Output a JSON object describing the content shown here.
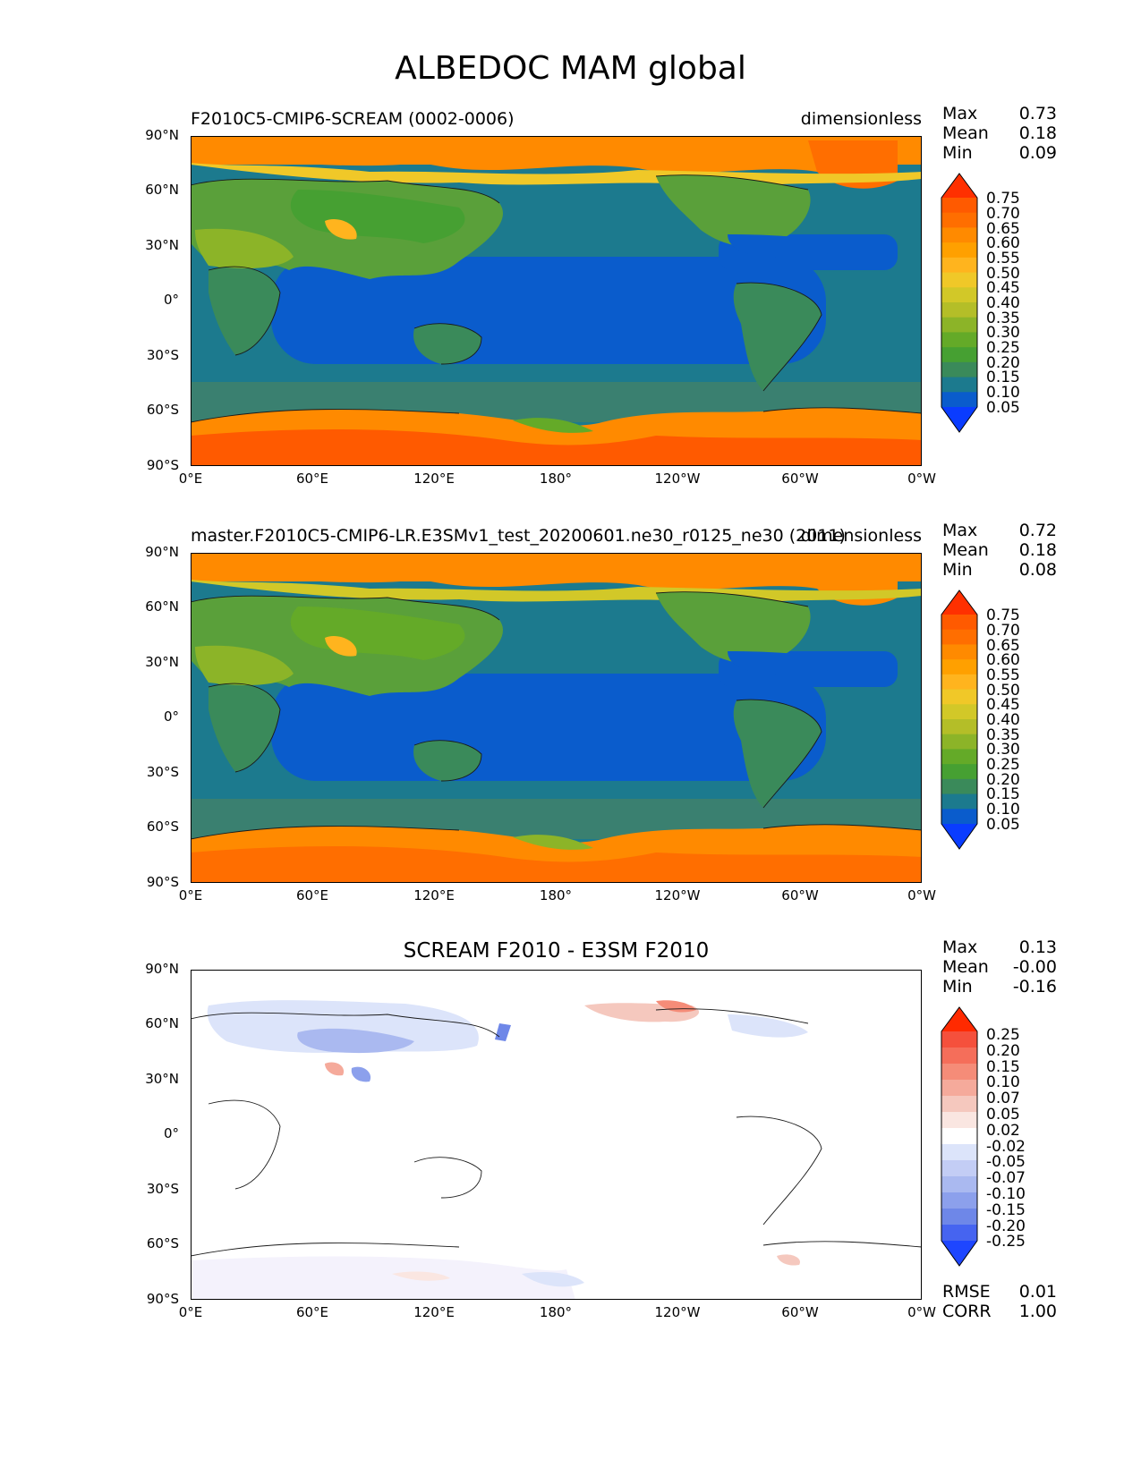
{
  "figure": {
    "title": "ALBEDOC MAM global"
  },
  "colors": {
    "ocean_tropics": "#0a5ccc",
    "ocean_mid": "#1c7a8e",
    "southern_band": "#3a8070",
    "land_green": "#5aa03a",
    "snow_orange": "#ff8a00",
    "snow_red_orange": "#ff5a00",
    "diff_white": "#ffffff"
  },
  "panels": [
    {
      "id": "test",
      "title_left": "F2010C5-CMIP6-SCREAM (0002-0006)",
      "title_right": "dimensionless",
      "stats": [
        {
          "label": "Max",
          "value": "0.73"
        },
        {
          "label": "Mean",
          "value": "0.18"
        },
        {
          "label": "Min",
          "value": "0.09"
        }
      ],
      "lat_ticks": [
        "90°N",
        "60°N",
        "30°N",
        "0°",
        "30°S",
        "60°S",
        "90°S"
      ],
      "lon_ticks": [
        "0°E",
        "60°E",
        "120°E",
        "180°",
        "120°W",
        "60°W",
        "0°W"
      ],
      "colorbar": {
        "labels": [
          "0.75",
          "0.70",
          "0.65",
          "0.60",
          "0.55",
          "0.50",
          "0.45",
          "0.40",
          "0.35",
          "0.30",
          "0.25",
          "0.20",
          "0.15",
          "0.10",
          "0.05"
        ],
        "colors": [
          "#ff3000",
          "#ff5a00",
          "#ff6e00",
          "#ff8a00",
          "#ffa000",
          "#ffb41e",
          "#f0c828",
          "#d2c828",
          "#b4be28",
          "#8cb428",
          "#64aa28",
          "#46a032",
          "#3a8a5a",
          "#1c7a8e",
          "#0a5ccc",
          "#0a3cff"
        ]
      }
    },
    {
      "id": "ref",
      "title_left": "master.F2010C5-CMIP6-LR.E3SMv1_test_20200601.ne30_r0125_ne30 (2011)",
      "title_right": "dimensionless",
      "stats": [
        {
          "label": "Max",
          "value": "0.72"
        },
        {
          "label": "Mean",
          "value": "0.18"
        },
        {
          "label": "Min",
          "value": "0.08"
        }
      ],
      "lat_ticks": [
        "90°N",
        "60°N",
        "30°N",
        "0°",
        "30°S",
        "60°S",
        "90°S"
      ],
      "lon_ticks": [
        "0°E",
        "60°E",
        "120°E",
        "180°",
        "120°W",
        "60°W",
        "0°W"
      ],
      "colorbar": {
        "labels": [
          "0.75",
          "0.70",
          "0.65",
          "0.60",
          "0.55",
          "0.50",
          "0.45",
          "0.40",
          "0.35",
          "0.30",
          "0.25",
          "0.20",
          "0.15",
          "0.10",
          "0.05"
        ],
        "colors": [
          "#ff3000",
          "#ff5a00",
          "#ff6e00",
          "#ff8a00",
          "#ffa000",
          "#ffb41e",
          "#f0c828",
          "#d2c828",
          "#b4be28",
          "#8cb428",
          "#64aa28",
          "#46a032",
          "#3a8a5a",
          "#1c7a8e",
          "#0a5ccc",
          "#0a3cff"
        ]
      }
    },
    {
      "id": "diff",
      "title_center": "SCREAM F2010 - E3SM F2010",
      "stats": [
        {
          "label": "Max",
          "value": "0.13"
        },
        {
          "label": "Mean",
          "value": "-0.00"
        },
        {
          "label": "Min",
          "value": "-0.16"
        }
      ],
      "extra_stats": [
        {
          "label": "RMSE",
          "value": "0.01"
        },
        {
          "label": "CORR",
          "value": "1.00"
        }
      ],
      "lat_ticks": [
        "90°N",
        "60°N",
        "30°N",
        "0°",
        "30°S",
        "60°S",
        "90°S"
      ],
      "lon_ticks": [
        "0°E",
        "60°E",
        "120°E",
        "180°",
        "120°W",
        "60°W",
        "0°W"
      ],
      "colorbar": {
        "labels": [
          "0.25",
          "0.20",
          "0.15",
          "0.10",
          "0.07",
          "0.05",
          "0.02",
          "-0.02",
          "-0.05",
          "-0.07",
          "-0.10",
          "-0.15",
          "-0.20",
          "-0.25"
        ],
        "colors": [
          "#ff2a00",
          "#f5503c",
          "#f56e5a",
          "#f58c78",
          "#f5aa9b",
          "#f5c8be",
          "#fae6e1",
          "#ffffff",
          "#dce4fa",
          "#c3cdf5",
          "#aab9f0",
          "#8ca0ec",
          "#6e87e8",
          "#4664f0",
          "#1e46ff"
        ]
      }
    }
  ]
}
